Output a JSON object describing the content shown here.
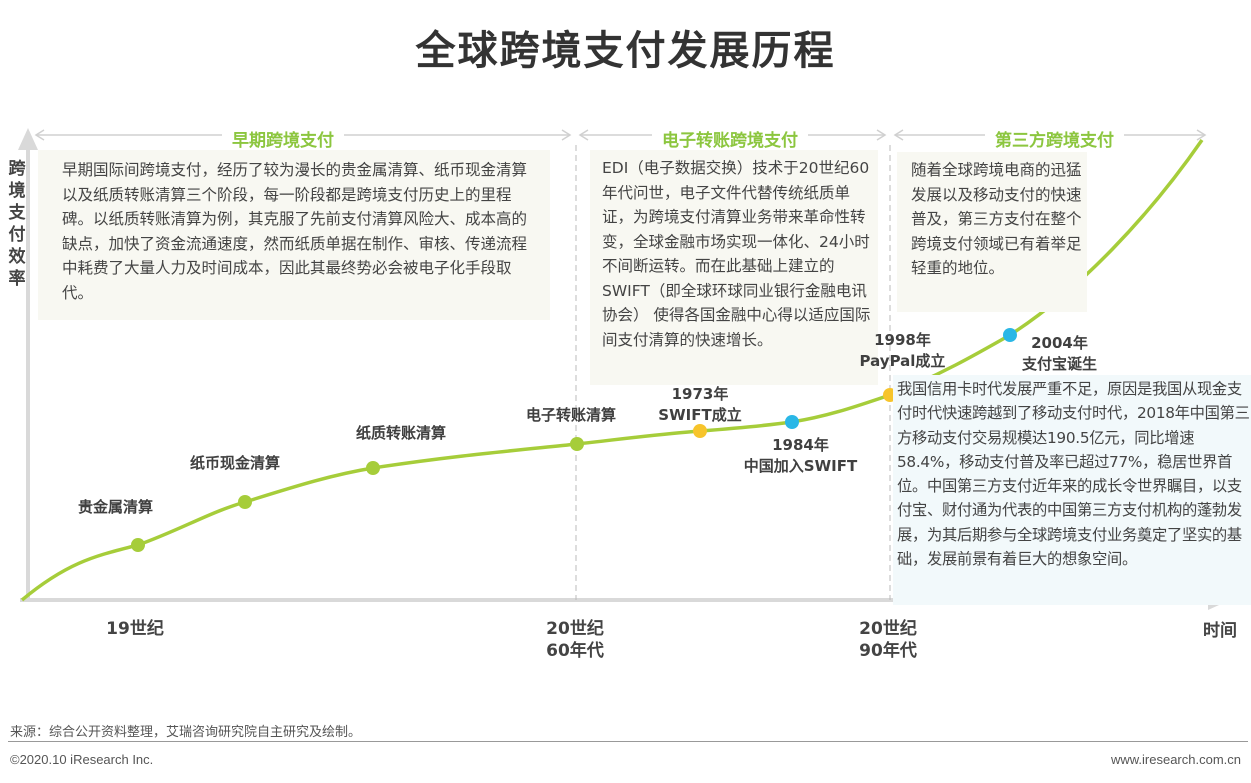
{
  "title": "全球跨境支付发展历程",
  "y_axis_label": "跨境支付效率",
  "x_axis_label": "时间",
  "phases": [
    {
      "label": "早期跨境支付",
      "text": "早期国际间跨境支付，经历了较为漫长的贵金属清算、纸币现金清算以及纸质转账清算三个阶段，每一阶段都是跨境支付历史上的里程碑。以纸质转账清算为例，其克服了先前支付清算风险大、成本高的缺点，加快了资金流通速度，然而纸质单据在制作、审核、传递流程中耗费了大量人力及时间成本，因此其最终势必会被电子化手段取代。"
    },
    {
      "label": "电子转账跨境支付",
      "text": "EDI（电子数据交换）技术于20世纪60年代问世，电子文件代替传统纸质单证，为跨境支付清算业务带来革命性转变，全球金融市场实现一体化、24小时不间断运转。而在此基础上建立的SWIFT（即全球环球同业银行金融电讯协会） 使得各国金融中心得以适应国际间支付清算的快速增长。"
    },
    {
      "label": "第三方跨境支付",
      "text": "随着全球跨境电商的迅猛发展以及移动支付的快速普及，第三方支付在整个跨境支付领域已有着举足轻重的地位。"
    }
  ],
  "china_note": "我国信用卡时代发展严重不足，原因是我国从现金支付时代快速跨越到了移动支付时代，2018年中国第三方移动支付交易规模达190.5亿元，同比增速58.4%，移动支付普及率已超过77%，稳居世界首位。中国第三方支付近年来的成长令世界瞩目，以支付宝、财付通为代表的中国第三方支付机构的蓬勃发展，为其后期参与全球跨境支付业务奠定了坚实的基础，发展前景有着巨大的想象空间。",
  "milestones": [
    {
      "label": "贵金属清算",
      "color": "#a6cd3a"
    },
    {
      "label": "纸币现金清算",
      "color": "#a6cd3a"
    },
    {
      "label": "纸质转账清算",
      "color": "#a6cd3a"
    },
    {
      "label": "电子转账清算",
      "color": "#a6cd3a"
    },
    {
      "year": "1973年",
      "label": "SWIFT成立",
      "color": "#f7c42b"
    },
    {
      "year": "1984年",
      "label": "中国加入SWIFT",
      "color": "#2ab7e6"
    },
    {
      "year": "1998年",
      "label": "PayPal成立",
      "color": "#f7c42b"
    },
    {
      "year": "2004年",
      "label": "支付宝诞生",
      "color": "#2ab7e6"
    }
  ],
  "x_ticks": [
    [
      "19世纪"
    ],
    [
      "20世纪",
      "60年代"
    ],
    [
      "20世纪",
      "90年代"
    ]
  ],
  "source": "来源：综合公开资料整理，艾瑞咨询研究院自主研究及绘制。",
  "copyright": "©2020.10 iResearch Inc.",
  "website": "www.iresearch.com.cn",
  "colors": {
    "curve": "#a6cd3a",
    "phase_label": "#8cc63f"
  }
}
